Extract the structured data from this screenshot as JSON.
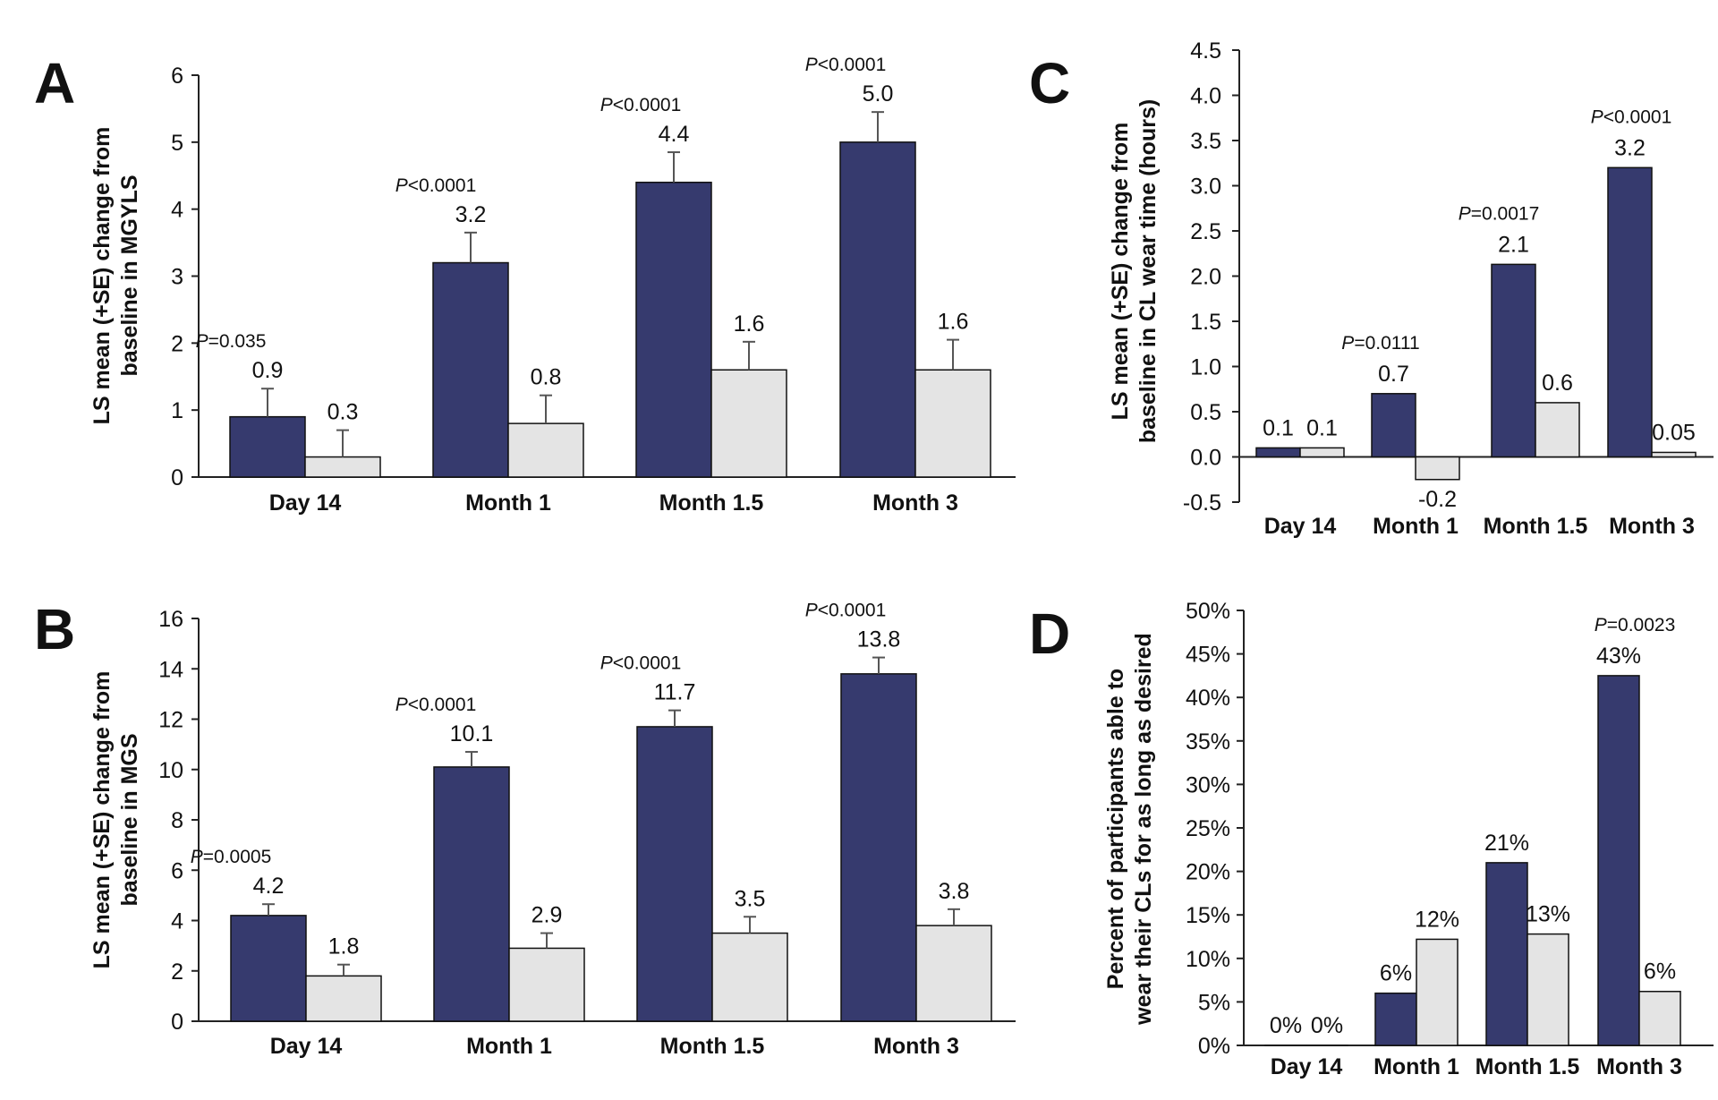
{
  "chart_data": [
    {
      "panel": "A",
      "type": "bar",
      "categories": [
        "Day 14",
        "Month 1",
        "Month 1.5",
        "Month 3"
      ],
      "ylabel": [
        "LS mean (+SE) change from",
        "baseline in MGYLS"
      ],
      "ylim": [
        0,
        6
      ],
      "yticks": [
        "0",
        "1",
        "2",
        "3",
        "4",
        "5",
        "6"
      ],
      "series": [
        {
          "values": [
            0.9,
            3.2,
            4.4,
            5.0
          ],
          "errors": [
            0.42,
            0.45,
            0.45,
            0.45
          ],
          "labels": [
            "0.9",
            "3.2",
            "4.4",
            "5.0"
          ]
        },
        {
          "values": [
            0.3,
            0.8,
            1.6,
            1.6
          ],
          "errors": [
            0.4,
            0.42,
            0.42,
            0.45
          ],
          "labels": [
            "0.3",
            "0.8",
            "1.6",
            "1.6"
          ]
        }
      ],
      "p_values": [
        "=0.035",
        "<0.0001",
        "<0.0001",
        "<0.0001"
      ],
      "p_prefix": "P",
      "error_bars": true
    },
    {
      "panel": "B",
      "type": "bar",
      "categories": [
        "Day 14",
        "Month 1",
        "Month 1.5",
        "Month 3"
      ],
      "ylabel": [
        "LS mean (+SE) change from",
        "baseline in MGS"
      ],
      "ylim": [
        0,
        16
      ],
      "yticks": [
        "0",
        "2",
        "4",
        "6",
        "8",
        "10",
        "12",
        "14",
        "16"
      ],
      "series": [
        {
          "values": [
            4.2,
            10.1,
            11.7,
            13.8
          ],
          "errors": [
            0.45,
            0.6,
            0.65,
            0.65
          ],
          "labels": [
            "4.2",
            "10.1",
            "11.7",
            "13.8"
          ]
        },
        {
          "values": [
            1.8,
            2.9,
            3.5,
            3.8
          ],
          "errors": [
            0.45,
            0.6,
            0.65,
            0.65
          ],
          "labels": [
            "1.8",
            "2.9",
            "3.5",
            "3.8"
          ]
        }
      ],
      "p_values": [
        "=0.0005",
        "<0.0001",
        "<0.0001",
        "<0.0001"
      ],
      "p_prefix": "P",
      "error_bars": true
    },
    {
      "panel": "C",
      "type": "bar",
      "categories": [
        "Day 14",
        "Month 1",
        "Month 1.5",
        "Month 3"
      ],
      "ylabel": [
        "LS mean (+SE) change from",
        "baseline in CL wear time (hours)"
      ],
      "ylim": [
        -0.5,
        4.5
      ],
      "yticks": [
        "-0.5",
        "0.0",
        "0.5",
        "1.0",
        "1.5",
        "2.0",
        "2.5",
        "3.0",
        "3.5",
        "4.0",
        "4.5"
      ],
      "series": [
        {
          "values": [
            0.1,
            0.7,
            2.13,
            3.2
          ],
          "labels": [
            "0.1",
            "0.7",
            "2.1",
            "3.2"
          ]
        },
        {
          "values": [
            0.1,
            -0.25,
            0.6,
            0.05
          ],
          "labels": [
            "0.1",
            "-0.2",
            "0.6",
            "0.05"
          ]
        }
      ],
      "p_values": [
        "",
        "=0.0111",
        "=0.0017",
        "<0.0001"
      ],
      "p_prefix": "P",
      "error_bars": false
    },
    {
      "panel": "D",
      "type": "bar",
      "categories": [
        "Day 14",
        "Month 1",
        "Month 1.5",
        "Month 3"
      ],
      "ylabel": [
        "Percent of participants able to",
        "wear their CLs for as long as desired"
      ],
      "ylim": [
        0,
        50
      ],
      "yticks": [
        "0%",
        "5%",
        "10%",
        "15%",
        "20%",
        "25%",
        "30%",
        "35%",
        "40%",
        "45%",
        "50%"
      ],
      "series": [
        {
          "values": [
            0,
            6,
            21,
            42.5
          ],
          "labels": [
            "0%",
            "6%",
            "21%",
            "43%"
          ]
        },
        {
          "values": [
            0,
            12.2,
            12.8,
            6.2
          ],
          "labels": [
            "0%",
            "12%",
            "13%",
            "6%"
          ]
        }
      ],
      "p_values": [
        "",
        "",
        "",
        "=0.0023"
      ],
      "p_prefix": "P",
      "error_bars": false
    }
  ]
}
